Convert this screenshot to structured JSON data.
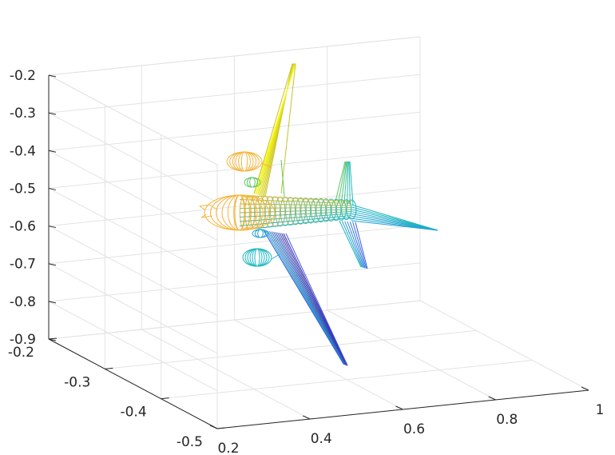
{
  "chart_data": {
    "type": "3d-wireframe",
    "title": "",
    "xlabel": "",
    "ylabel": "",
    "zlabel": "",
    "grid": true,
    "colormap": "parula",
    "xlim": [
      0.2,
      1.0
    ],
    "ylim": [
      -0.5,
      -0.2
    ],
    "zlim": [
      -0.9,
      -0.2
    ],
    "x_ticks": [
      {
        "value": 0.2,
        "label": "0.2"
      },
      {
        "value": 0.4,
        "label": "0.4"
      },
      {
        "value": 0.6,
        "label": "0.6"
      },
      {
        "value": 0.8,
        "label": "0.8"
      },
      {
        "value": 1.0,
        "label": "1"
      }
    ],
    "y_ticks": [
      {
        "value": -0.2,
        "label": "-0.2"
      },
      {
        "value": -0.3,
        "label": "-0.3"
      },
      {
        "value": -0.4,
        "label": "-0.4"
      },
      {
        "value": -0.5,
        "label": "-0.5"
      }
    ],
    "z_ticks": [
      {
        "value": -0.2,
        "label": "-0.2"
      },
      {
        "value": -0.3,
        "label": "-0.3"
      },
      {
        "value": -0.4,
        "label": "-0.4"
      },
      {
        "value": -0.5,
        "label": "-0.5"
      },
      {
        "value": -0.6,
        "label": "-0.6"
      },
      {
        "value": -0.7,
        "label": "-0.7"
      },
      {
        "value": -0.8,
        "label": "-0.8"
      },
      {
        "value": -0.9,
        "label": "-0.9"
      }
    ],
    "object": "airplane wireframe mesh",
    "colors": {
      "yellow": "#f9fb0e",
      "yellow_green": "#c8c22c",
      "orange": "#f6b43c",
      "green": "#5cc863",
      "cyan": "#1fb7c2",
      "teal": "#22a2d3",
      "blue": "#3d5be8",
      "dark_blue": "#3e26a8"
    }
  }
}
